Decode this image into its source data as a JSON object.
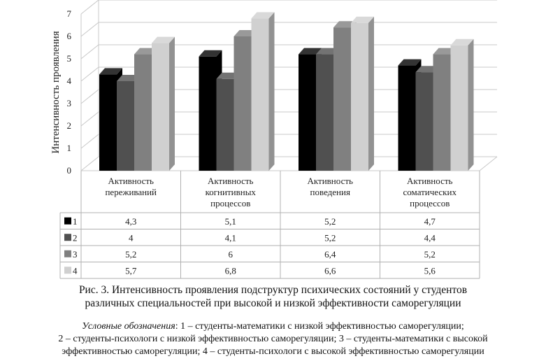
{
  "chart_data": {
    "type": "bar",
    "ylabel": "Интенсивность проявления",
    "ylim": [
      0,
      7
    ],
    "yticks": [
      0,
      1,
      2,
      3,
      4,
      5,
      6,
      7
    ],
    "grid": true,
    "categories": [
      [
        "Активность",
        "переживаний"
      ],
      [
        "Активность",
        "когнитивных",
        "процессов"
      ],
      [
        "Активность",
        "поведения"
      ],
      [
        "Активность",
        "соматических",
        "процессов"
      ]
    ],
    "series": [
      {
        "name": "1",
        "color": "#000000",
        "values": [
          4.3,
          5.1,
          5.2,
          4.7
        ],
        "labels": [
          "4,3",
          "5,1",
          "5,2",
          "4,7"
        ]
      },
      {
        "name": "2",
        "color": "#505050",
        "values": [
          4.0,
          4.1,
          5.2,
          4.4
        ],
        "labels": [
          "4",
          "4,1",
          "5,2",
          "4,4"
        ]
      },
      {
        "name": "3",
        "color": "#808080",
        "values": [
          5.2,
          6.0,
          6.4,
          5.2
        ],
        "labels": [
          "5,2",
          "6",
          "6,4",
          "5,2"
        ]
      },
      {
        "name": "4",
        "color": "#d0d0d0",
        "values": [
          5.7,
          6.8,
          6.6,
          5.6
        ],
        "labels": [
          "5,7",
          "6,8",
          "6,6",
          "5,6"
        ]
      }
    ]
  },
  "caption": {
    "line1": "Рис. 3. Интенсивность проявления подструктур психических состояний у студентов",
    "line2": "различных специальностей при высокой и низкой эффективности саморегуляции"
  },
  "legend_note": {
    "label": "Условные обозначения",
    "line1": ": 1 – студенты-математики с низкой эффективностью саморегуляции;",
    "line2": "2 – студенты-психологи с низкой эффективностью саморегуляции; 3 – студенты-математики с высокой",
    "line3": "эффективностью саморегуляции; 4 – студенты-психологи с высокой эффективностью саморегуляции"
  }
}
